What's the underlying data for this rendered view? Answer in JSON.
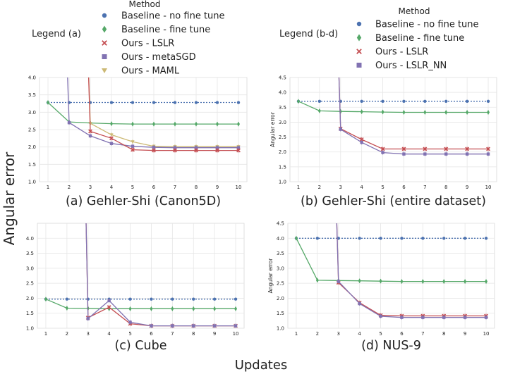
{
  "figure": {
    "ylabel": "Angular error",
    "xlabel": "Updates"
  },
  "legends": [
    {
      "method_title": "Method",
      "tag": "Legend (a)",
      "entries": [
        {
          "label": "Baseline - no fine tune",
          "marker": "circle",
          "color": "#4c72b0"
        },
        {
          "label": "Baseline - fine tune",
          "marker": "diamond",
          "color": "#55a868"
        },
        {
          "label": "Ours - LSLR",
          "marker": "x",
          "color": "#c44e52"
        },
        {
          "label": "Ours - metaSGD",
          "marker": "square",
          "color": "#8172b2"
        },
        {
          "label": "Ours - MAML",
          "marker": "triangle",
          "color": "#ccb974"
        }
      ]
    },
    {
      "method_title": "Method",
      "tag": "Legend (b-d)",
      "entries": [
        {
          "label": "Baseline - no fine tune",
          "marker": "circle",
          "color": "#4c72b0"
        },
        {
          "label": "Baseline - fine tune",
          "marker": "diamond",
          "color": "#55a868"
        },
        {
          "label": "Ours - LSLR",
          "marker": "x",
          "color": "#c44e52"
        },
        {
          "label": "Ours - LSLR_NN",
          "marker": "square",
          "color": "#8172b2"
        }
      ]
    }
  ],
  "chart_data": [
    {
      "type": "line",
      "title": "(a) Gehler-Shi (Canon5D)",
      "ylabel": "",
      "x": [
        1,
        2,
        3,
        4,
        5,
        6,
        7,
        8,
        9,
        10
      ],
      "xlim": [
        0.6,
        10.4
      ],
      "ylim": [
        1.0,
        4.0
      ],
      "yticks": [
        "1.0",
        "1.5",
        "2.0",
        "2.5",
        "3.0",
        "3.5",
        "4.0"
      ],
      "grid": true,
      "series": [
        {
          "name": "Baseline - no fine tune",
          "color": "#4c72b0",
          "dashed": true,
          "marker": "circle",
          "values": [
            3.28,
            3.28,
            3.28,
            3.28,
            3.28,
            3.28,
            3.28,
            3.28,
            3.28,
            3.28
          ]
        },
        {
          "name": "Baseline - fine tune",
          "color": "#55a868",
          "dashed": false,
          "marker": "diamond",
          "values": [
            3.28,
            2.72,
            2.69,
            2.67,
            2.66,
            2.66,
            2.66,
            2.66,
            2.66,
            2.66
          ]
        },
        {
          "name": "Ours - MAML",
          "color": "#ccb974",
          "dashed": false,
          "marker": "triangle",
          "values": [
            null,
            null,
            2.68,
            2.35,
            2.15,
            2.02,
            2.01,
            2.01,
            2.01,
            2.01
          ]
        },
        {
          "name": "Ours - metaSGD",
          "color": "#8172b2",
          "dashed": false,
          "marker": "square",
          "values": [
            null,
            2.7,
            2.32,
            2.1,
            2.02,
            1.99,
            1.98,
            1.98,
            1.98,
            1.98
          ]
        },
        {
          "name": "Ours - LSLR",
          "color": "#c44e52",
          "dashed": false,
          "marker": "x",
          "values": [
            null,
            null,
            2.45,
            2.25,
            1.92,
            1.9,
            1.9,
            1.9,
            1.9,
            1.9
          ]
        }
      ]
    },
    {
      "type": "line",
      "title": "(b) Gehler-Shi (entire dataset)",
      "ylabel": "Angular error",
      "x": [
        1,
        2,
        3,
        4,
        5,
        6,
        7,
        8,
        9,
        10
      ],
      "xlim": [
        0.6,
        10.4
      ],
      "ylim": [
        1.0,
        4.5
      ],
      "yticks": [
        "1.0",
        "1.5",
        "2.0",
        "2.5",
        "3.0",
        "3.5",
        "4.0",
        "4.5"
      ],
      "grid": true,
      "series": [
        {
          "name": "Baseline - no fine tune",
          "color": "#4c72b0",
          "dashed": true,
          "marker": "circle",
          "values": [
            3.7,
            3.7,
            3.7,
            3.7,
            3.7,
            3.7,
            3.7,
            3.7,
            3.7,
            3.7
          ]
        },
        {
          "name": "Baseline - fine tune",
          "color": "#55a868",
          "dashed": false,
          "marker": "diamond",
          "values": [
            3.7,
            3.38,
            3.36,
            3.35,
            3.34,
            3.33,
            3.33,
            3.33,
            3.33,
            3.33
          ]
        },
        {
          "name": "Ours - LSLR",
          "color": "#c44e52",
          "dashed": false,
          "marker": "x",
          "values": [
            null,
            null,
            2.78,
            2.42,
            2.1,
            2.1,
            2.1,
            2.1,
            2.1,
            2.1
          ]
        },
        {
          "name": "Ours - LSLR_NN",
          "color": "#8172b2",
          "dashed": false,
          "marker": "square",
          "values": [
            null,
            null,
            2.76,
            2.32,
            1.98,
            1.93,
            1.93,
            1.93,
            1.93,
            1.93
          ]
        }
      ]
    },
    {
      "type": "line",
      "title": "(c) Cube",
      "ylabel": "",
      "x": [
        1,
        2,
        3,
        4,
        5,
        6,
        7,
        8,
        9,
        10
      ],
      "xlim": [
        0.6,
        10.4
      ],
      "ylim": [
        1.0,
        4.5
      ],
      "yticks": [
        "1.0",
        "1.5",
        "2.0",
        "2.5",
        "3.0",
        "3.5",
        "4.0"
      ],
      "grid": true,
      "series": [
        {
          "name": "Baseline - no fine tune",
          "color": "#4c72b0",
          "dashed": true,
          "marker": "circle",
          "values": [
            1.97,
            1.97,
            1.97,
            1.97,
            1.97,
            1.97,
            1.97,
            1.97,
            1.97,
            1.97
          ]
        },
        {
          "name": "Baseline - fine tune",
          "color": "#55a868",
          "dashed": false,
          "marker": "diamond",
          "values": [
            1.97,
            1.67,
            1.66,
            1.65,
            1.65,
            1.65,
            1.65,
            1.65,
            1.65,
            1.65
          ]
        },
        {
          "name": "Ours - LSLR",
          "color": "#c44e52",
          "dashed": false,
          "marker": "x",
          "values": [
            null,
            null,
            1.35,
            1.7,
            1.15,
            1.08,
            1.08,
            1.08,
            1.08,
            1.08
          ]
        },
        {
          "name": "Ours - LSLR_NN",
          "color": "#8172b2",
          "dashed": false,
          "marker": "square",
          "values": [
            null,
            null,
            1.32,
            1.92,
            1.2,
            1.08,
            1.08,
            1.08,
            1.08,
            1.08
          ]
        }
      ]
    },
    {
      "type": "line",
      "title": "(d) NUS-9",
      "ylabel": "Angular error",
      "x": [
        1,
        2,
        3,
        4,
        5,
        6,
        7,
        8,
        9,
        10
      ],
      "xlim": [
        0.6,
        10.4
      ],
      "ylim": [
        1.0,
        4.5
      ],
      "yticks": [
        "1.0",
        "1.5",
        "2.0",
        "2.5",
        "3.0",
        "3.5",
        "4.0",
        "4.5"
      ],
      "grid": true,
      "series": [
        {
          "name": "Baseline - no fine tune",
          "color": "#4c72b0",
          "dashed": true,
          "marker": "circle",
          "values": [
            4.0,
            4.0,
            4.0,
            4.0,
            4.0,
            4.0,
            4.0,
            4.0,
            4.0,
            4.0
          ]
        },
        {
          "name": "Baseline - fine tune",
          "color": "#55a868",
          "dashed": false,
          "marker": "diamond",
          "values": [
            4.0,
            2.6,
            2.59,
            2.58,
            2.57,
            2.56,
            2.56,
            2.56,
            2.56,
            2.56
          ]
        },
        {
          "name": "Ours - LSLR",
          "color": "#c44e52",
          "dashed": false,
          "marker": "x",
          "values": [
            null,
            null,
            2.52,
            1.85,
            1.43,
            1.41,
            1.41,
            1.41,
            1.41,
            1.41
          ]
        },
        {
          "name": "Ours - LSLR_NN",
          "color": "#8172b2",
          "dashed": false,
          "marker": "square",
          "values": [
            null,
            null,
            2.56,
            1.82,
            1.4,
            1.36,
            1.36,
            1.36,
            1.36,
            1.36
          ]
        }
      ]
    }
  ]
}
